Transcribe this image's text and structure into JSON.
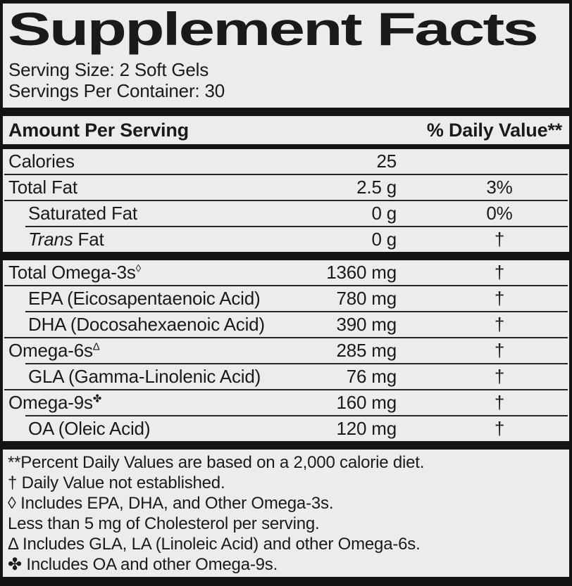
{
  "title": "Supplement Facts",
  "serving": {
    "size": "Serving Size: 2 Soft Gels",
    "per_container": "Servings Per Container: 30"
  },
  "header": {
    "amount_per_serving": "Amount Per Serving",
    "daily_value": "% Daily Value**"
  },
  "table": {
    "rows": [
      {
        "name": "Calories",
        "amount": "25",
        "dv": "",
        "indent": false,
        "rule": "none"
      },
      {
        "name": "Total Fat",
        "amount": "2.5 g",
        "dv": "3%",
        "indent": false,
        "rule": "full"
      },
      {
        "name": "Saturated Fat",
        "amount": "0 g",
        "dv": "0%",
        "indent": true,
        "rule": "full"
      },
      {
        "name": " Fat",
        "italic": "Trans",
        "amount": "0 g",
        "dv": "†",
        "indent": true,
        "rule": "indent"
      },
      {
        "name": "Total Omega-3s",
        "sup": "◊",
        "amount": "1360 mg",
        "dv": "†",
        "indent": false,
        "rule": "thick"
      },
      {
        "name": "EPA (Eicosapentaenoic Acid)",
        "amount": "780 mg",
        "dv": "†",
        "indent": true,
        "rule": "full"
      },
      {
        "name": "DHA (Docosahexaenoic Acid)",
        "amount": "390 mg",
        "dv": "†",
        "indent": true,
        "rule": "indent"
      },
      {
        "name": "Omega-6s",
        "sup": "Δ",
        "amount": "285 mg",
        "dv": "†",
        "indent": false,
        "rule": "full"
      },
      {
        "name": "GLA (Gamma-Linolenic Acid)",
        "amount": "76 mg",
        "dv": "†",
        "indent": true,
        "rule": "indent"
      },
      {
        "name": "Omega-9s",
        "sup": "✤",
        "amount": "160 mg",
        "dv": "†",
        "indent": false,
        "rule": "full"
      },
      {
        "name": "OA (Oleic Acid)",
        "amount": "120 mg",
        "dv": "†",
        "indent": true,
        "rule": "indent"
      }
    ]
  },
  "footnotes": [
    "**Percent Daily Values are based on a 2,000 calorie diet.",
    "† Daily Value not established.",
    "◊ Includes EPA, DHA, and Other Omega-3s.",
    "Less than 5 mg of Cholesterol per serving.",
    "Δ Includes GLA, LA (Linoleic Acid) and other Omega-6s.",
    "✤ Includes OA and other Omega-9s."
  ],
  "colors": {
    "background": "#ECECEA",
    "ink": "#1A1A1A",
    "bar": "#141414"
  }
}
